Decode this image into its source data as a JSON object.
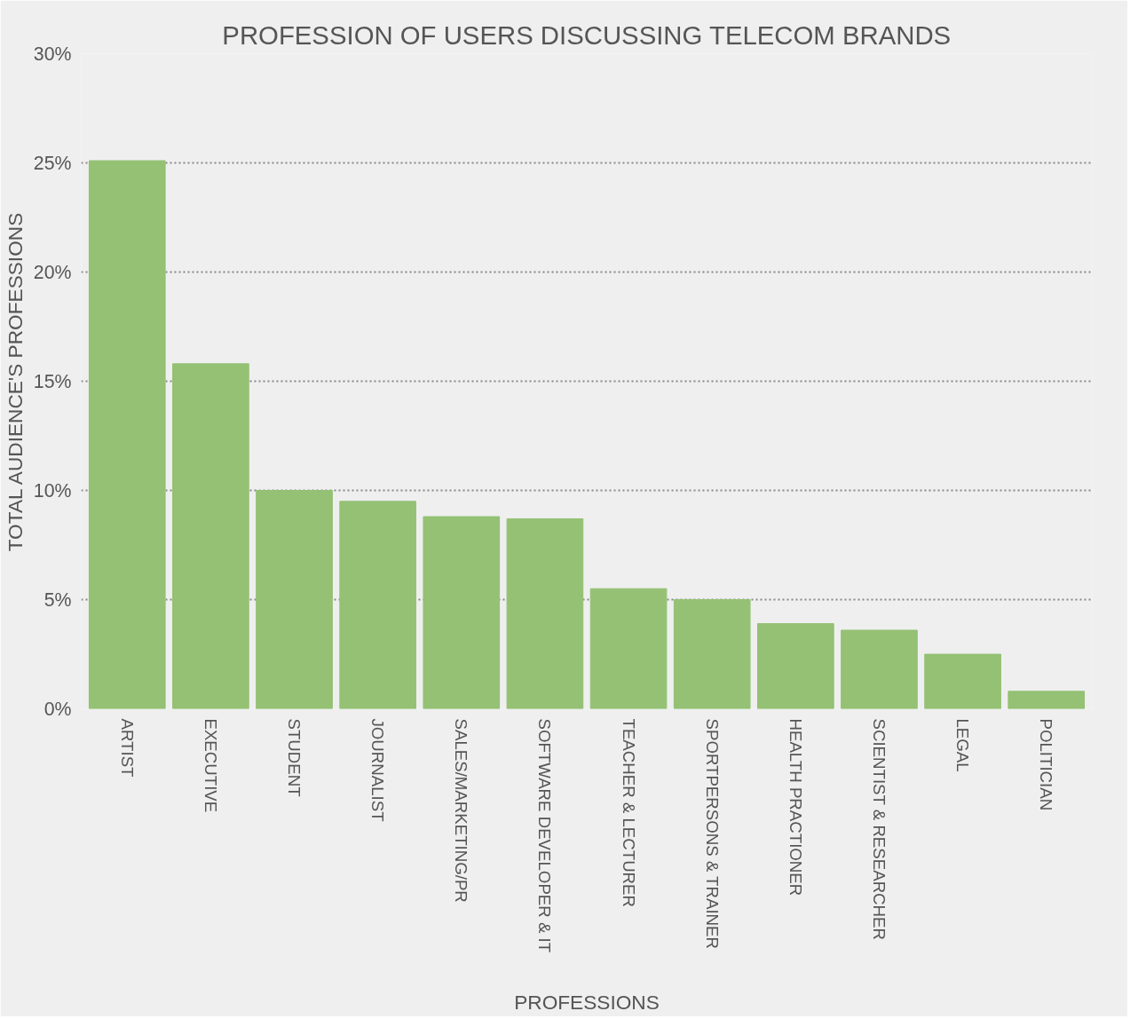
{
  "chart_data": {
    "type": "bar",
    "title": "PROFESSION OF USERS DISCUSSING TELECOM BRANDS",
    "xlabel": "PROFESSIONS",
    "ylabel": "TOTAL AUDIENCE'S PROFESSIONS",
    "categories": [
      "ARTIST",
      "EXECUTIVE",
      "STUDENT",
      "JOURNALIST",
      "SALES/MARKETING/PR",
      "SOFTWARE DEVELOPER & IT",
      "TEACHER & LECTURER",
      "SPORTPERSONS & TRAINER",
      "HEALTH PRACTIONER",
      "SCIENTIST & RESEARCHER",
      "LEGAL",
      "POLITICIAN"
    ],
    "values": [
      25.1,
      15.8,
      10.0,
      9.5,
      8.8,
      8.7,
      5.5,
      5.0,
      3.9,
      3.6,
      2.5,
      0.8
    ],
    "color": "#94c174",
    "ylim": [
      0,
      30
    ],
    "yticks": [
      {
        "value": 0,
        "label": "0%"
      },
      {
        "value": 5,
        "label": "5%"
      },
      {
        "value": 10,
        "label": "10%"
      },
      {
        "value": 15,
        "label": "15%"
      },
      {
        "value": 20,
        "label": "20%"
      },
      {
        "value": 25,
        "label": "25%"
      },
      {
        "value": 30,
        "label": "30%"
      }
    ],
    "grid": "y"
  }
}
